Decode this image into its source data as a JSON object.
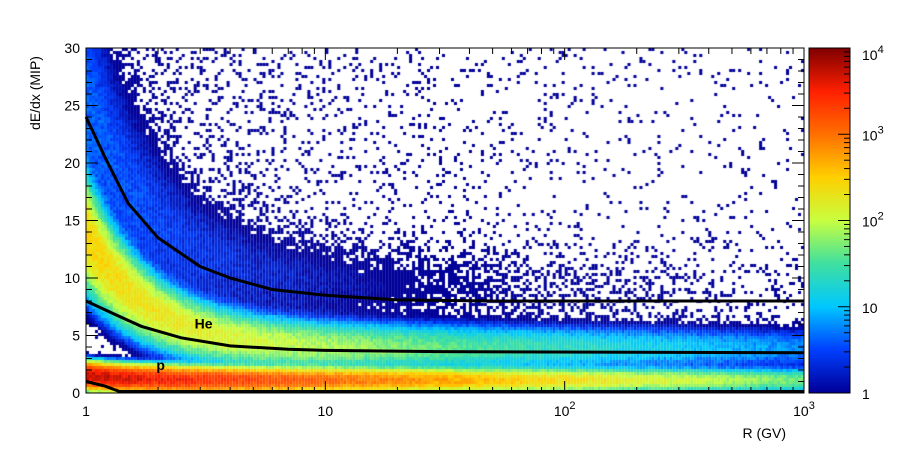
{
  "chart_data": {
    "type": "heatmap",
    "xlabel": "R (GV)",
    "ylabel": "dE/dx (MIP)",
    "xscale": "log",
    "xlim": [
      1,
      1000
    ],
    "ylim": [
      0,
      30
    ],
    "zscale": "log",
    "zlim": [
      1,
      10000
    ],
    "x_ticks": [
      {
        "value": 1,
        "label": "1",
        "exp": ""
      },
      {
        "value": 10,
        "label": "10",
        "exp": ""
      },
      {
        "value": 100,
        "label": "10",
        "exp": "2"
      },
      {
        "value": 1000,
        "label": "10",
        "exp": "3"
      }
    ],
    "y_ticks": [
      "0",
      "5",
      "10",
      "15",
      "20",
      "25",
      "30"
    ],
    "z_ticks": [
      {
        "value": 1,
        "label": "1",
        "exp": ""
      },
      {
        "value": 10,
        "label": "10",
        "exp": ""
      },
      {
        "value": 100,
        "label": "10",
        "exp": "2"
      },
      {
        "value": 1000,
        "label": "10",
        "exp": "3"
      },
      {
        "value": 10000,
        "label": "10",
        "exp": "4"
      }
    ],
    "palette": [
      "#000099",
      "#0040ff",
      "#00c8ff",
      "#40e0a0",
      "#c8ff40",
      "#ffd000",
      "#ff7000",
      "#ff2000",
      "#800000"
    ],
    "bands": [
      {
        "label": "p",
        "dEdx_at_min_ionizing": 1.1,
        "peak_counts": 6000
      },
      {
        "label": "He",
        "dEdx_at_min_ionizing": 3.9,
        "peak_counts": 300
      }
    ],
    "annotations": [
      {
        "text": "He",
        "x": 3.1,
        "y": 5.6
      },
      {
        "text": "p",
        "x": 2.05,
        "y": 2.0
      }
    ],
    "cut_curves": [
      {
        "points": [
          [
            1,
            24
          ],
          [
            1.2,
            20.5
          ],
          [
            1.5,
            16.5
          ],
          [
            2,
            13.5
          ],
          [
            3,
            11
          ],
          [
            4,
            10
          ],
          [
            6,
            9
          ],
          [
            10,
            8.5
          ],
          [
            20,
            8.1
          ],
          [
            50,
            8
          ],
          [
            1000,
            8
          ]
        ]
      },
      {
        "points": [
          [
            1,
            8
          ],
          [
            1.3,
            6.9
          ],
          [
            1.7,
            5.8
          ],
          [
            2.5,
            4.8
          ],
          [
            4,
            4.1
          ],
          [
            7,
            3.8
          ],
          [
            10,
            3.7
          ],
          [
            30,
            3.6
          ],
          [
            1000,
            3.5
          ]
        ]
      },
      {
        "points": [
          [
            1,
            1
          ],
          [
            1.2,
            0.6
          ],
          [
            1.38,
            0.1
          ],
          [
            1.4,
            0
          ],
          [
            1000,
            0
          ]
        ]
      }
    ],
    "grid": false,
    "legend": "colorbar-right"
  }
}
